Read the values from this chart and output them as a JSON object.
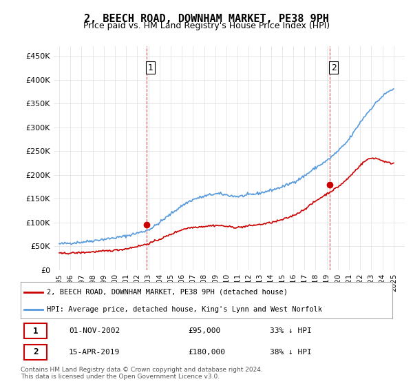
{
  "title": "2, BEECH ROAD, DOWNHAM MARKET, PE38 9PH",
  "subtitle": "Price paid vs. HM Land Registry's House Price Index (HPI)",
  "ylabel_ticks": [
    "£0",
    "£50K",
    "£100K",
    "£150K",
    "£200K",
    "£250K",
    "£300K",
    "£350K",
    "£400K",
    "£450K"
  ],
  "ytick_values": [
    0,
    50000,
    100000,
    150000,
    200000,
    250000,
    300000,
    350000,
    400000,
    450000
  ],
  "ylim": [
    0,
    470000
  ],
  "sale1_date_idx": 7.9,
  "sale1_price": 95000,
  "sale1_label": "1",
  "sale1_date_str": "01-NOV-2002",
  "sale1_pct": "33% ↓ HPI",
  "sale2_date_idx": 23.3,
  "sale2_price": 180000,
  "sale2_label": "2",
  "sale2_date_str": "15-APR-2019",
  "sale2_pct": "38% ↓ HPI",
  "red_line_color": "#cc0000",
  "blue_line_color": "#5599dd",
  "legend_label1": "2, BEECH ROAD, DOWNHAM MARKET, PE38 9PH (detached house)",
  "legend_label2": "HPI: Average price, detached house, King's Lynn and West Norfolk",
  "footnote": "Contains HM Land Registry data © Crown copyright and database right 2024.\nThis data is licensed under the Open Government Licence v3.0.",
  "background_color": "#ffffff",
  "grid_color": "#dddddd"
}
